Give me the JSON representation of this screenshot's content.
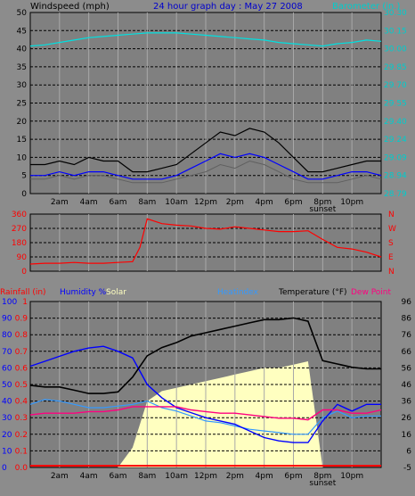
{
  "chart_data": [
    {
      "type": "line",
      "title": "24 hour graph day : May 27 2008",
      "y_left_label": "Windspeed (mph)",
      "y_right_label": "Barometer (in.)",
      "y_left_ticks": [
        "0",
        "5",
        "10",
        "15",
        "20",
        "25",
        "30",
        "35",
        "40",
        "45",
        "50"
      ],
      "y_right_ticks": [
        "28.79",
        "28.94",
        "29.09",
        "29.24",
        "29.40",
        "29.55",
        "29.70",
        "29.85",
        "30.00",
        "30.15",
        "30.30"
      ],
      "x_ticks": [
        "2am",
        "4am",
        "6am",
        "8am",
        "10am",
        "12pm",
        "2pm",
        "4pm",
        "6pm",
        "8pm",
        "10pm"
      ],
      "sunset_label": "sunset",
      "ylim_left": [
        0,
        50
      ],
      "ylim_right": [
        28.79,
        30.3
      ],
      "grid": true,
      "colors": {
        "barometer": "#00e0e0",
        "gust": "#000000",
        "wind_avg": "#0000ff",
        "wind": "#606060"
      },
      "x_hours": [
        0,
        1,
        2,
        3,
        4,
        5,
        6,
        7,
        8,
        9,
        10,
        11,
        12,
        13,
        14,
        15,
        16,
        17,
        18,
        19,
        20,
        21,
        22,
        23,
        24
      ],
      "series": [
        {
          "key": "barometer",
          "axis": "right",
          "values": [
            30.02,
            30.03,
            30.05,
            30.07,
            30.09,
            30.1,
            30.11,
            30.12,
            30.13,
            30.13,
            30.13,
            30.12,
            30.11,
            30.1,
            30.09,
            30.08,
            30.07,
            30.05,
            30.04,
            30.03,
            30.02,
            30.04,
            30.05,
            30.07,
            30.06
          ]
        },
        {
          "key": "gust",
          "axis": "left",
          "values": [
            8,
            8,
            9,
            8,
            10,
            9,
            9,
            6,
            6,
            7,
            8,
            11,
            14,
            17,
            16,
            18,
            17,
            14,
            10,
            6,
            6,
            7,
            8,
            9,
            9
          ]
        },
        {
          "key": "wind_avg",
          "axis": "left",
          "values": [
            5,
            5,
            6,
            5,
            6,
            6,
            5,
            4,
            4,
            4,
            5,
            7,
            9,
            11,
            10,
            11,
            10,
            8,
            6,
            4,
            4,
            5,
            6,
            6,
            5
          ]
        },
        {
          "key": "wind",
          "axis": "left",
          "values": [
            4,
            4,
            5,
            4,
            5,
            5,
            4,
            3,
            3,
            3,
            4,
            5,
            6,
            8,
            7,
            9,
            8,
            6,
            4,
            3,
            3,
            3,
            4,
            5,
            4
          ]
        }
      ]
    },
    {
      "type": "line",
      "y_left_ticks": [
        "0",
        "90",
        "180",
        "270",
        "360"
      ],
      "y_right_ticks": [
        "N",
        "E",
        "S",
        "W",
        "N"
      ],
      "ylim": [
        0,
        360
      ],
      "colors": {
        "direction": "#ff0000"
      },
      "x_hours": [
        0,
        1,
        2,
        3,
        4,
        5,
        6,
        7,
        7.5,
        8,
        9,
        10,
        11,
        12,
        13,
        14,
        15,
        16,
        17,
        18,
        19,
        20,
        21,
        22,
        23,
        24
      ],
      "series": [
        {
          "key": "direction",
          "values": [
            45,
            50,
            50,
            55,
            50,
            50,
            55,
            60,
            150,
            330,
            300,
            290,
            285,
            270,
            265,
            280,
            270,
            260,
            250,
            250,
            255,
            200,
            150,
            140,
            120,
            90
          ]
        }
      ]
    },
    {
      "type": "line",
      "labels": {
        "rainfall": "Rainfall (in)",
        "humidity": "Humidity %",
        "solar": "Solar",
        "heatindex": "Heatindex",
        "temperature": "Temperature (°F)",
        "dewpoint": "Dew Point"
      },
      "y_humidity_ticks": [
        "0",
        "10",
        "20",
        "30",
        "40",
        "50",
        "60",
        "70",
        "80",
        "90",
        "100"
      ],
      "y_rain_ticks": [
        "0.0",
        "0.1",
        "0.2",
        "0.3",
        "0.4",
        "0.5",
        "0.6",
        "0.7",
        "0.8",
        "0.9",
        "1"
      ],
      "y_right_ticks": [
        "-5",
        "6",
        "16",
        "26",
        "36",
        "46",
        "56",
        "66",
        "76",
        "86",
        "96"
      ],
      "ylim_pct": [
        0,
        100
      ],
      "ylim_temp": [
        -5,
        96
      ],
      "colors": {
        "humidity": "#0000ff",
        "solar": "#ffffc0",
        "heatindex": "#3399ff",
        "temperature": "#000000",
        "dewpoint": "#ff0080",
        "rainfall": "#ff0000"
      },
      "x_hours": [
        0,
        1,
        2,
        3,
        4,
        5,
        6,
        7,
        8,
        9,
        10,
        11,
        12,
        13,
        14,
        15,
        16,
        17,
        18,
        19,
        20,
        21,
        22,
        23,
        24
      ],
      "series": [
        {
          "key": "solar",
          "axis": "pct",
          "values": [
            0,
            0,
            0,
            0,
            0,
            0,
            0,
            12,
            40,
            46,
            48,
            50,
            52,
            54,
            56,
            58,
            60,
            60,
            62,
            64,
            0,
            0,
            0,
            0,
            0
          ]
        },
        {
          "key": "humidity",
          "axis": "pct",
          "values": [
            61,
            64,
            67,
            70,
            72,
            73,
            70,
            66,
            50,
            42,
            36,
            33,
            30,
            28,
            26,
            22,
            18,
            16,
            15,
            15,
            28,
            38,
            34,
            38,
            38
          ]
        },
        {
          "key": "heatindex",
          "axis": "pct",
          "values": [
            38,
            41,
            40,
            38,
            36,
            36,
            37,
            38,
            40,
            36,
            34,
            31,
            28,
            27,
            25,
            23,
            22,
            21,
            20,
            20,
            30,
            34,
            30,
            31,
            31
          ]
        },
        {
          "key": "temperature",
          "axis": "temp",
          "values": [
            45,
            44,
            44,
            42,
            40,
            40,
            41,
            50,
            63,
            68,
            71,
            75,
            77,
            79,
            81,
            83,
            85,
            85,
            86,
            84,
            60,
            58,
            56,
            55,
            55
          ]
        },
        {
          "key": "dewpoint",
          "axis": "temp",
          "values": [
            27,
            28,
            28,
            28,
            29,
            29,
            30,
            32,
            32,
            32,
            32,
            30,
            29,
            28,
            28,
            27,
            26,
            25,
            25,
            24,
            30,
            30,
            28,
            28,
            30
          ]
        },
        {
          "key": "rainfall",
          "axis": "pct",
          "values": [
            1,
            1,
            1,
            1,
            1,
            1,
            1,
            1,
            1,
            1,
            1,
            1,
            1,
            1,
            1,
            1,
            1,
            1,
            1,
            1,
            1,
            1,
            1,
            1,
            1
          ]
        }
      ]
    }
  ]
}
